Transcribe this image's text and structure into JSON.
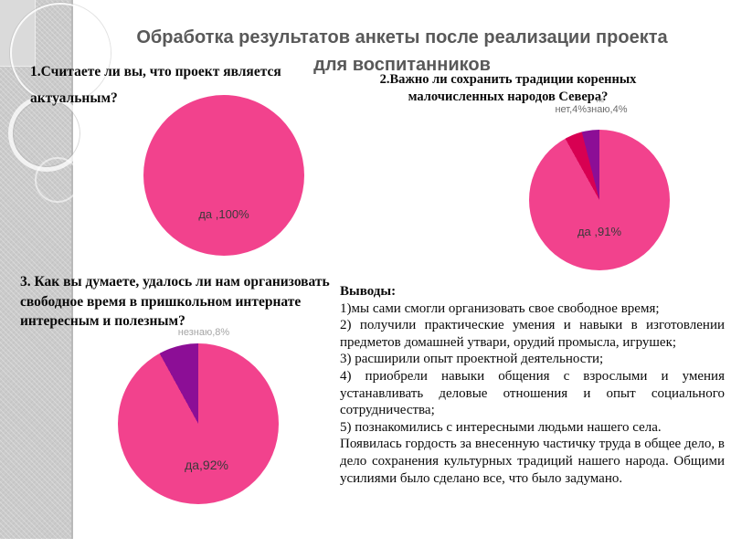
{
  "title": {
    "line1": "Обработка результатов анкеты после реализации проекта",
    "line2": "для воспитанников"
  },
  "questions": {
    "q1": {
      "line1": "1.Считаете ли вы, что проект является",
      "line2": "актуальным?"
    },
    "q2": {
      "line1": "2.Важно ли сохранить традиции коренных",
      "line2": "малочисленных народов Севера?"
    },
    "q3": {
      "line1": "3. Как вы думаете, удалось ли нам организовать",
      "line2": "свободное время в пришкольном интернате",
      "line3": "интересным и полезным?"
    }
  },
  "conclusions": {
    "heading": "Выводы:",
    "items": [
      "1)мы сами смогли организовать свое свободное время;",
      "2) получили практические умения и навыки в изготовлении предметов домашней утвари, орудий промысла, игрушек;",
      "3) расширили опыт проектной деятельности;",
      "4) приобрели  навыки общения с взрослыми и умения устанавливать деловые отношения и опыт социального сотрудничества;",
      "5) познакомились с интересными людьми нашего села."
    ],
    "closing": "Появилась гордость за внесенную частичку труда в общее дело, в дело сохранения культурных традиций нашего народа.  Общими усилиями было сделано все, что было задумано."
  },
  "chart_data": [
    {
      "type": "pie",
      "title": "1.Считаете ли вы, что проект является актуальным?",
      "legend_position": "none",
      "slices": [
        {
          "label": "да",
          "value": 100,
          "color": "#F2428D",
          "data_label": "да ,100%"
        }
      ]
    },
    {
      "type": "pie",
      "title": "2.Важно ли сохранить традиции коренных малочисленных народов Севера?",
      "legend_position": "none",
      "slices": [
        {
          "label": "да",
          "value": 91,
          "color": "#F2428D",
          "data_label": "да ,91%"
        },
        {
          "label": "нет",
          "value": 4,
          "color": "#D80052",
          "data_label": "нет,4%"
        },
        {
          "label": "не знаю",
          "value": 4,
          "color": "#8C0E96",
          "data_label": "не знаю,4%"
        }
      ],
      "callout": {
        "line1": "не",
        "line2": "нет,4%знаю,4%"
      }
    },
    {
      "type": "pie",
      "title": "3. Как вы думаете, удалось ли нам организовать свободное время в пришкольном интернате интересным и полезным?",
      "legend_position": "none",
      "slices": [
        {
          "label": "да",
          "value": 92,
          "color": "#F2428D",
          "data_label": "да,92%"
        },
        {
          "label": "не знаю",
          "value": 8,
          "color": "#8C0E96",
          "data_label": "незнаю,8%"
        }
      ],
      "callout": {
        "line1": "незнаю,8%"
      }
    }
  ],
  "colors": {
    "pie_pink": "#F2428D",
    "pie_crimson": "#D80052",
    "pie_purple": "#8C0E96",
    "title_gray": "#595959",
    "sidebar_gray": "#CBCBCB"
  }
}
